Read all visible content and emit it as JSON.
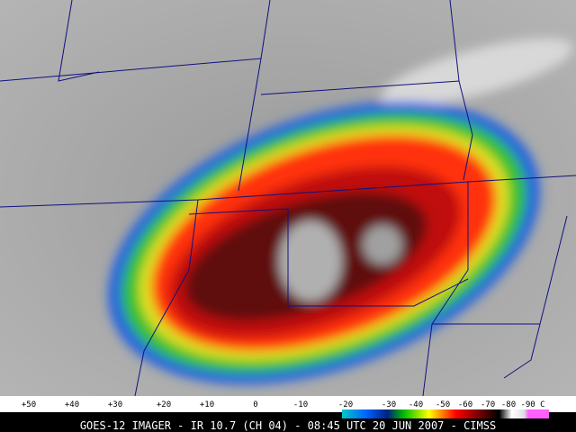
{
  "colorbar": {
    "labels": [
      "+50",
      "+40",
      "+30",
      "+20",
      "+10",
      "0",
      "-10",
      "-20",
      "-30",
      "-40",
      "-50",
      "-60",
      "-70",
      "-80",
      "-90 C"
    ]
  },
  "caption": "GOES-12 IMAGER - IR 10.7 (CH 04) - 08:45 UTC 20 JUN 2007 - CIMSS"
}
